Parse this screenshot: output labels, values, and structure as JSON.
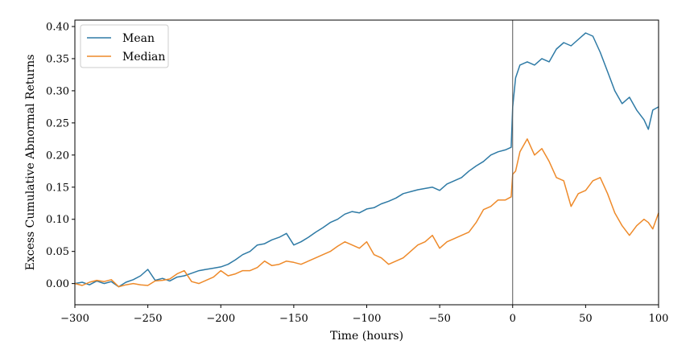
{
  "chart_data": {
    "type": "line",
    "title": "",
    "xlabel": "Time (hours)",
    "ylabel": "Excess Cumulative Abnormal Returns",
    "xlim": [
      -300,
      100
    ],
    "ylim": [
      -0.033,
      0.41
    ],
    "xticks": [
      -300,
      -250,
      -200,
      -150,
      -100,
      -50,
      0,
      50,
      100
    ],
    "xtick_labels": [
      "−300",
      "−250",
      "−200",
      "−150",
      "−100",
      "−50",
      "0",
      "50",
      "100"
    ],
    "yticks": [
      0.0,
      0.05,
      0.1,
      0.15,
      0.2,
      0.25,
      0.3,
      0.35,
      0.4
    ],
    "ytick_labels": [
      "0.00",
      "0.05",
      "0.10",
      "0.15",
      "0.20",
      "0.25",
      "0.30",
      "0.35",
      "0.40"
    ],
    "grid": false,
    "legend_position": "upper-left",
    "vline": {
      "x": 0,
      "color": "#555555"
    },
    "series": [
      {
        "name": "Mean",
        "color": "#2e7aa5",
        "x": [
          -300,
          -295,
          -290,
          -285,
          -280,
          -275,
          -270,
          -265,
          -260,
          -255,
          -250,
          -245,
          -240,
          -235,
          -230,
          -225,
          -220,
          -215,
          -210,
          -205,
          -200,
          -195,
          -190,
          -185,
          -180,
          -175,
          -170,
          -165,
          -160,
          -155,
          -150,
          -145,
          -140,
          -135,
          -130,
          -125,
          -120,
          -115,
          -110,
          -105,
          -100,
          -95,
          -90,
          -85,
          -80,
          -75,
          -70,
          -65,
          -60,
          -55,
          -50,
          -45,
          -40,
          -35,
          -30,
          -25,
          -20,
          -15,
          -10,
          -5,
          -1,
          0,
          2,
          5,
          10,
          15,
          20,
          25,
          30,
          35,
          40,
          45,
          50,
          55,
          60,
          65,
          70,
          75,
          80,
          85,
          90,
          93,
          96,
          100
        ],
        "y": [
          0.0,
          0.002,
          -0.002,
          0.004,
          0.0,
          0.003,
          -0.005,
          0.002,
          0.006,
          0.012,
          0.022,
          0.005,
          0.008,
          0.004,
          0.01,
          0.012,
          0.016,
          0.02,
          0.022,
          0.024,
          0.026,
          0.03,
          0.037,
          0.045,
          0.05,
          0.06,
          0.062,
          0.068,
          0.072,
          0.078,
          0.06,
          0.065,
          0.072,
          0.08,
          0.087,
          0.095,
          0.1,
          0.108,
          0.112,
          0.11,
          0.116,
          0.118,
          0.124,
          0.128,
          0.133,
          0.14,
          0.143,
          0.146,
          0.148,
          0.15,
          0.145,
          0.155,
          0.16,
          0.165,
          0.175,
          0.183,
          0.19,
          0.2,
          0.205,
          0.208,
          0.212,
          0.275,
          0.32,
          0.34,
          0.345,
          0.34,
          0.35,
          0.345,
          0.365,
          0.375,
          0.37,
          0.38,
          0.39,
          0.385,
          0.36,
          0.33,
          0.3,
          0.28,
          0.29,
          0.27,
          0.255,
          0.24,
          0.27,
          0.275
        ]
      },
      {
        "name": "Median",
        "color": "#ee8a2a",
        "x": [
          -300,
          -295,
          -290,
          -285,
          -280,
          -275,
          -270,
          -265,
          -260,
          -255,
          -250,
          -245,
          -240,
          -235,
          -230,
          -225,
          -220,
          -215,
          -210,
          -205,
          -200,
          -195,
          -190,
          -185,
          -180,
          -175,
          -170,
          -165,
          -160,
          -155,
          -150,
          -145,
          -140,
          -135,
          -130,
          -125,
          -120,
          -115,
          -110,
          -105,
          -100,
          -95,
          -90,
          -85,
          -80,
          -75,
          -70,
          -65,
          -60,
          -55,
          -50,
          -45,
          -40,
          -35,
          -30,
          -25,
          -20,
          -15,
          -10,
          -5,
          -1,
          0,
          2,
          5,
          10,
          15,
          20,
          25,
          30,
          35,
          40,
          45,
          50,
          55,
          60,
          65,
          70,
          75,
          80,
          85,
          90,
          93,
          96,
          100
        ],
        "y": [
          0.0,
          -0.003,
          0.002,
          0.005,
          0.003,
          0.006,
          -0.005,
          -0.002,
          0.0,
          -0.002,
          -0.003,
          0.004,
          0.005,
          0.007,
          0.015,
          0.02,
          0.003,
          0.0,
          0.005,
          0.01,
          0.02,
          0.012,
          0.015,
          0.02,
          0.02,
          0.025,
          0.035,
          0.028,
          0.03,
          0.035,
          0.033,
          0.03,
          0.035,
          0.04,
          0.045,
          0.05,
          0.058,
          0.065,
          0.06,
          0.055,
          0.065,
          0.045,
          0.04,
          0.03,
          0.035,
          0.04,
          0.05,
          0.06,
          0.065,
          0.075,
          0.055,
          0.065,
          0.07,
          0.075,
          0.08,
          0.095,
          0.115,
          0.12,
          0.13,
          0.13,
          0.135,
          0.17,
          0.175,
          0.205,
          0.225,
          0.2,
          0.21,
          0.19,
          0.165,
          0.16,
          0.12,
          0.14,
          0.145,
          0.16,
          0.165,
          0.14,
          0.11,
          0.09,
          0.075,
          0.09,
          0.1,
          0.095,
          0.085,
          0.11
        ]
      }
    ]
  }
}
